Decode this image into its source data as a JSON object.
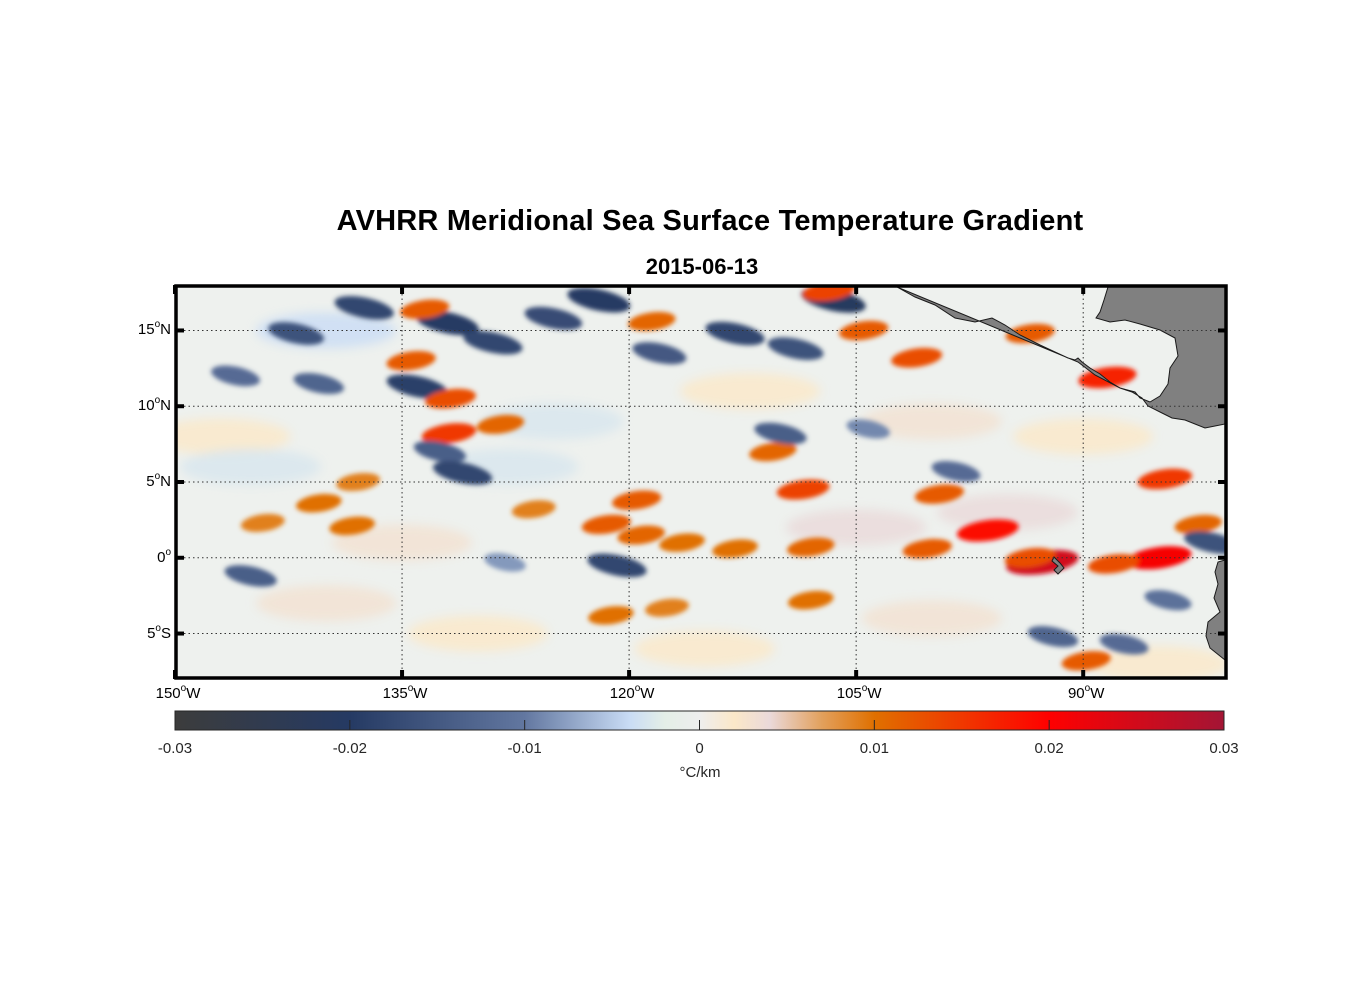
{
  "chart_data": {
    "type": "heatmap",
    "title": "AVHRR Meridional Sea Surface Temperature Gradient",
    "subtitle": "2015-06-13",
    "projection": "equirectangular map",
    "xlabel": "",
    "ylabel": "",
    "xlim": [
      -150,
      -80.5
    ],
    "ylim": [
      -8,
      18
    ],
    "x_ticks": [
      {
        "value": -150,
        "deg": "150",
        "hemi": "W"
      },
      {
        "value": -135,
        "deg": "135",
        "hemi": "W"
      },
      {
        "value": -120,
        "deg": "120",
        "hemi": "W"
      },
      {
        "value": -105,
        "deg": "105",
        "hemi": "W"
      },
      {
        "value": -90,
        "deg": "90",
        "hemi": "W"
      }
    ],
    "y_ticks": [
      {
        "value": 15,
        "deg": "15",
        "hemi": "N"
      },
      {
        "value": 10,
        "deg": "10",
        "hemi": "N"
      },
      {
        "value": 5,
        "deg": "5",
        "hemi": "N"
      },
      {
        "value": 0,
        "deg": "0",
        "hemi": ""
      },
      {
        "value": -5,
        "deg": "5",
        "hemi": "S"
      }
    ],
    "grid": true,
    "colorbar": {
      "orientation": "horizontal",
      "placement": "bottom",
      "range": [
        -0.03,
        0.03
      ],
      "ticks": [
        -0.03,
        -0.02,
        -0.01,
        0,
        0.01,
        0.02,
        0.03
      ],
      "tick_labels": [
        "-0.03",
        "-0.02",
        "-0.01",
        "0",
        "0.01",
        "0.02",
        "0.03"
      ],
      "unit_label": "°C/km",
      "colormap": [
        {
          "v": -0.03,
          "c": "#3c3c3c"
        },
        {
          "v": -0.02,
          "c": "#253a63"
        },
        {
          "v": -0.01,
          "c": "#6277a0"
        },
        {
          "v": -0.004,
          "c": "#c9dcf5"
        },
        {
          "v": -0.002,
          "c": "#e4efe7"
        },
        {
          "v": 0,
          "c": "#eeeeee"
        },
        {
          "v": 0.002,
          "c": "#fbe8c8"
        },
        {
          "v": 0.004,
          "c": "#ead9da"
        },
        {
          "v": 0.007,
          "c": "#e2a05c"
        },
        {
          "v": 0.01,
          "c": "#e07000"
        },
        {
          "v": 0.02,
          "c": "#ff0000"
        },
        {
          "v": 0.03,
          "c": "#a31535"
        }
      ]
    },
    "features": [
      {
        "lon": -137.5,
        "lat": 16.5,
        "value": -0.018
      },
      {
        "lon": -142,
        "lat": 14.8,
        "value": -0.016
      },
      {
        "lon": -132,
        "lat": 15.5,
        "value": -0.02
      },
      {
        "lon": -129,
        "lat": 14.2,
        "value": -0.018
      },
      {
        "lon": -125,
        "lat": 15.8,
        "value": -0.017
      },
      {
        "lon": -122,
        "lat": 17.0,
        "value": -0.02
      },
      {
        "lon": -118,
        "lat": 13.5,
        "value": -0.015
      },
      {
        "lon": -113,
        "lat": 14.8,
        "value": -0.018
      },
      {
        "lon": -109,
        "lat": 13.8,
        "value": -0.016
      },
      {
        "lon": -106.5,
        "lat": 17.0,
        "value": -0.021
      },
      {
        "lon": -134,
        "lat": 11.3,
        "value": -0.019
      },
      {
        "lon": -146,
        "lat": 12.0,
        "value": -0.012
      },
      {
        "lon": -140.5,
        "lat": 11.5,
        "value": -0.013
      },
      {
        "lon": -133.5,
        "lat": 16.4,
        "value": 0.012
      },
      {
        "lon": -134.4,
        "lat": 13.0,
        "value": 0.012
      },
      {
        "lon": -131.8,
        "lat": 10.5,
        "value": 0.013
      },
      {
        "lon": -118.5,
        "lat": 15.6,
        "value": 0.011
      },
      {
        "lon": -104.5,
        "lat": 15.0,
        "value": 0.012
      },
      {
        "lon": -101,
        "lat": 13.2,
        "value": 0.013
      },
      {
        "lon": -93.5,
        "lat": 14.8,
        "value": 0.012
      },
      {
        "lon": -88.4,
        "lat": 11.9,
        "value": 0.017
      },
      {
        "lon": -106.8,
        "lat": 17.6,
        "value": 0.014
      },
      {
        "lon": -131.9,
        "lat": 8.2,
        "value": 0.015
      },
      {
        "lon": -128.5,
        "lat": 8.8,
        "value": 0.011
      },
      {
        "lon": -132.5,
        "lat": 7.0,
        "value": -0.014
      },
      {
        "lon": -131.0,
        "lat": 5.6,
        "value": -0.018
      },
      {
        "lon": -140.5,
        "lat": 3.6,
        "value": 0.01
      },
      {
        "lon": -144.2,
        "lat": 2.3,
        "value": 0.009
      },
      {
        "lon": -137.9,
        "lat": 5.0,
        "value": 0.009
      },
      {
        "lon": -138.3,
        "lat": 2.1,
        "value": 0.01
      },
      {
        "lon": -126.3,
        "lat": 3.2,
        "value": 0.009
      },
      {
        "lon": -121.5,
        "lat": 2.2,
        "value": 0.012
      },
      {
        "lon": -119.5,
        "lat": 3.8,
        "value": 0.012
      },
      {
        "lon": -119.2,
        "lat": 1.5,
        "value": 0.011
      },
      {
        "lon": -116.5,
        "lat": 1.0,
        "value": 0.01
      },
      {
        "lon": -113,
        "lat": 0.6,
        "value": 0.01
      },
      {
        "lon": -108,
        "lat": 0.7,
        "value": 0.011
      },
      {
        "lon": -110.5,
        "lat": 7.0,
        "value": 0.011
      },
      {
        "lon": -108.5,
        "lat": 4.5,
        "value": 0.014
      },
      {
        "lon": -110.0,
        "lat": 8.2,
        "value": -0.014
      },
      {
        "lon": -120.8,
        "lat": -0.5,
        "value": -0.018
      },
      {
        "lon": -121.2,
        "lat": -3.8,
        "value": 0.01
      },
      {
        "lon": -117.5,
        "lat": -3.3,
        "value": 0.009
      },
      {
        "lon": -108.0,
        "lat": -2.8,
        "value": 0.01
      },
      {
        "lon": -99.5,
        "lat": 4.2,
        "value": 0.012
      },
      {
        "lon": -100.3,
        "lat": 0.6,
        "value": 0.012
      },
      {
        "lon": -96.3,
        "lat": 1.8,
        "value": 0.019
      },
      {
        "lon": -92.7,
        "lat": -0.3,
        "value": 0.025
      },
      {
        "lon": -93.5,
        "lat": 0.0,
        "value": 0.013
      },
      {
        "lon": -85.0,
        "lat": 0.0,
        "value": 0.021
      },
      {
        "lon": -88.0,
        "lat": -0.4,
        "value": 0.013
      },
      {
        "lon": -84.6,
        "lat": 5.2,
        "value": 0.015
      },
      {
        "lon": -82.4,
        "lat": 2.2,
        "value": 0.011
      },
      {
        "lon": -89.8,
        "lat": -6.8,
        "value": 0.012
      },
      {
        "lon": -87.3,
        "lat": -5.7,
        "value": -0.012
      },
      {
        "lon": -98.4,
        "lat": 5.7,
        "value": -0.012
      },
      {
        "lon": -92.0,
        "lat": -5.2,
        "value": -0.013
      },
      {
        "lon": -84.4,
        "lat": -2.8,
        "value": -0.011
      },
      {
        "lon": -81.5,
        "lat": 1.0,
        "value": -0.016
      },
      {
        "lon": -145.0,
        "lat": -1.2,
        "value": -0.014
      },
      {
        "lon": -128.2,
        "lat": -0.3,
        "value": -0.008
      },
      {
        "lon": -104.2,
        "lat": 8.5,
        "value": -0.009
      }
    ]
  }
}
